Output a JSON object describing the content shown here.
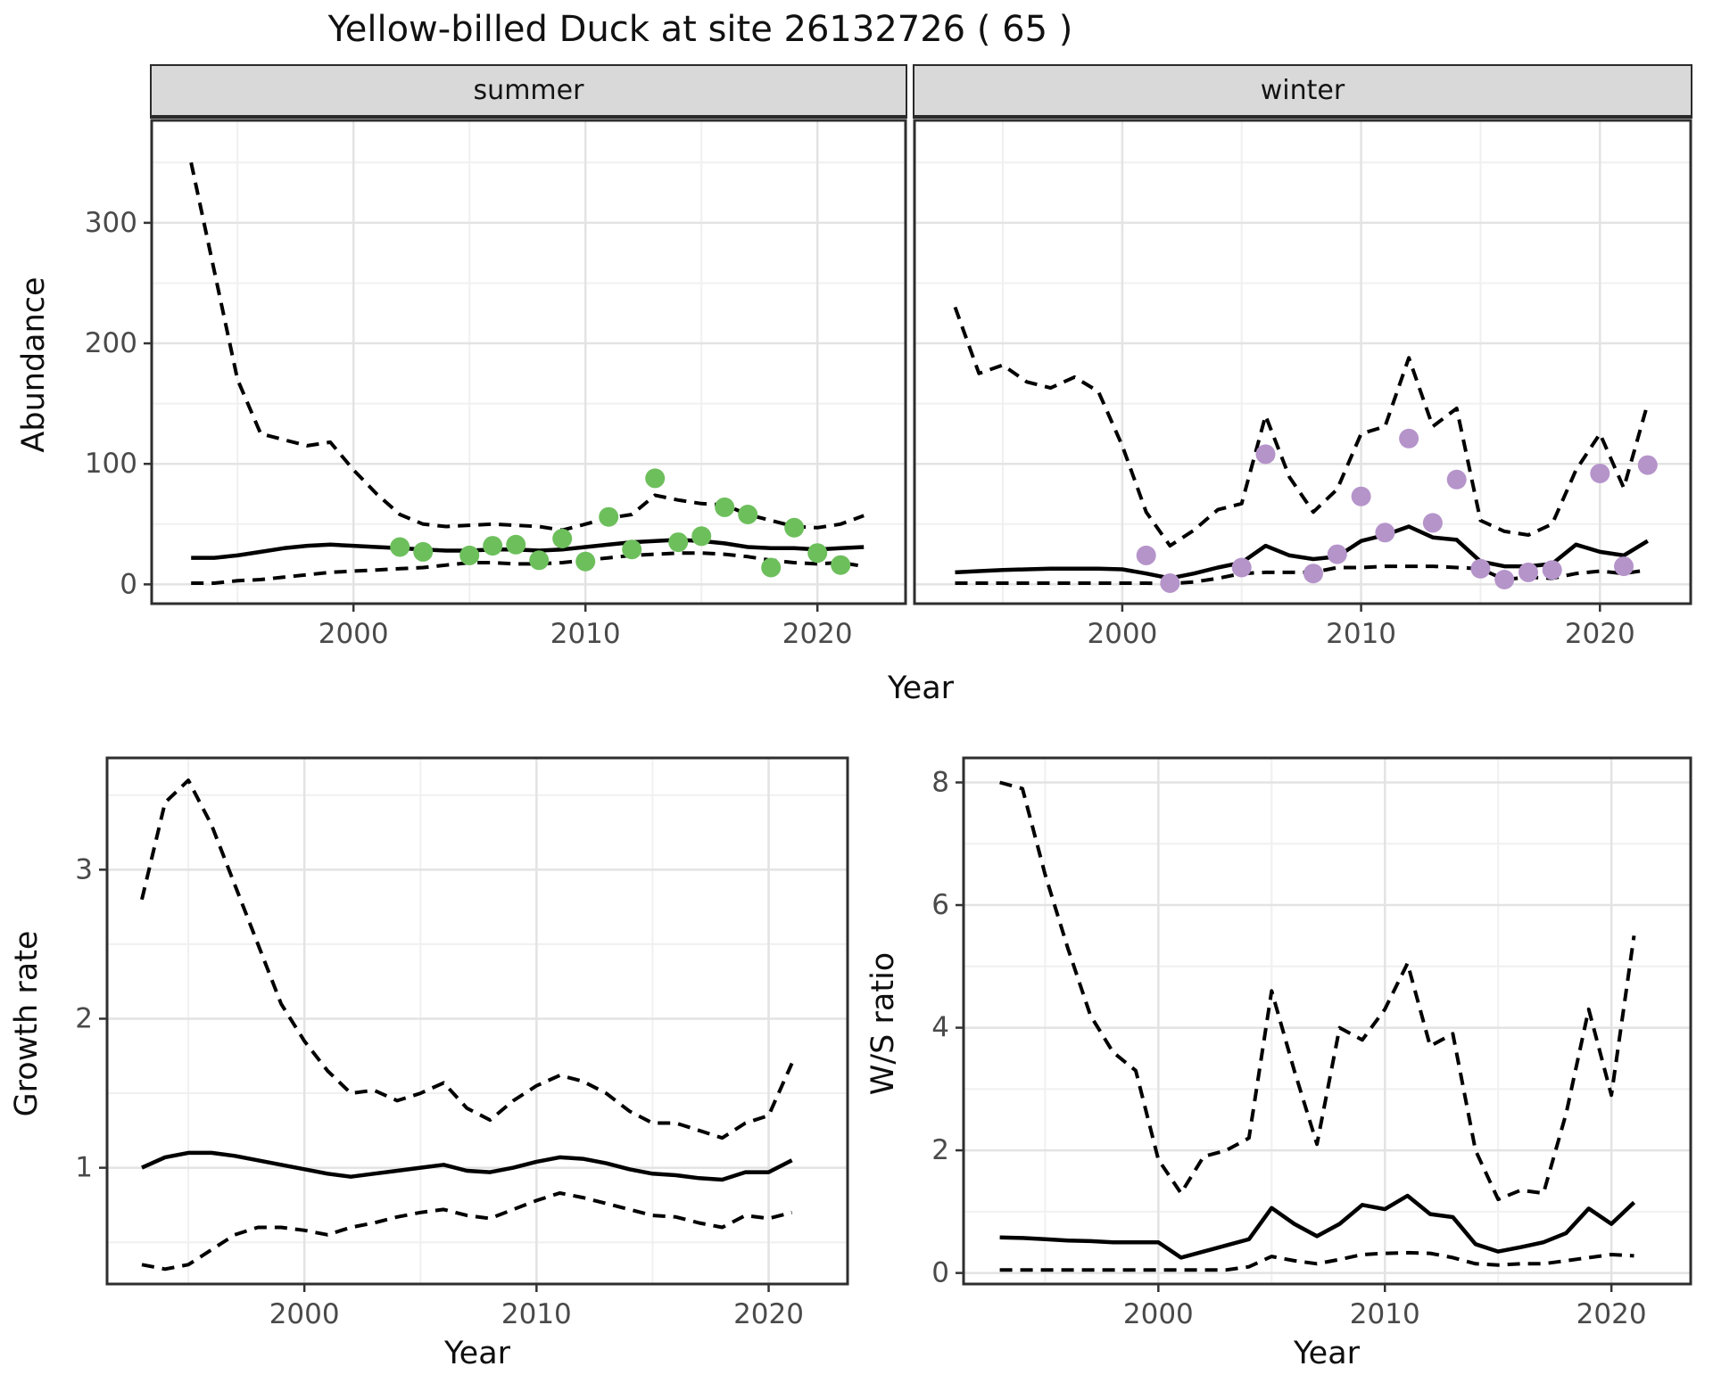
{
  "title": "Yellow-billed Duck at site 26132726 ( 65 )",
  "facets": {
    "summer": "summer",
    "winter": "winter"
  },
  "axes": {
    "abundance_label": "Abundance",
    "growth_label": "Growth rate",
    "ratio_label": "W/S ratio",
    "year_label": "Year"
  },
  "colors": {
    "summer_points": "#6dbf5c",
    "winter_points": "#b594ca",
    "line": "#000000",
    "strip_bg": "#d9d9d9",
    "grid_major": "#e3e3e3",
    "grid_minor": "#f0f0f0",
    "panel_border": "#2e2e2e",
    "tick_text": "#4a4a4a"
  },
  "chart_data": [
    {
      "id": "summer",
      "type": "line",
      "facet": "summer",
      "xlabel": "Year",
      "ylabel": "Abundance",
      "xlim": [
        1991.3,
        2023.8
      ],
      "ylim": [
        -16,
        385
      ],
      "x_ticks": [
        2000,
        2010,
        2020
      ],
      "x_minor": [
        1995,
        2005,
        2015
      ],
      "y_ticks": [
        0,
        100,
        200,
        300
      ],
      "y_minor": [
        50,
        150,
        250,
        350
      ],
      "x_start": 1993,
      "series": [
        {
          "name": "upper_ci",
          "style": "dashed",
          "values": [
            350,
            260,
            170,
            125,
            120,
            115,
            118,
            95,
            75,
            58,
            50,
            48,
            49,
            50,
            49,
            48,
            45,
            50,
            55,
            58,
            74,
            70,
            67,
            66,
            58,
            53,
            48,
            47,
            50,
            57
          ]
        },
        {
          "name": "median",
          "style": "solid",
          "values": [
            22,
            22,
            24,
            27,
            30,
            32,
            33,
            32,
            31,
            30,
            29,
            28,
            28,
            29,
            29,
            28,
            29,
            31,
            33,
            35,
            36,
            37,
            36,
            34,
            31,
            30,
            30,
            29,
            30,
            31
          ]
        },
        {
          "name": "lower_ci",
          "style": "dashed",
          "values": [
            1,
            1,
            3,
            4,
            6,
            8,
            10,
            11,
            12,
            13,
            14,
            16,
            18,
            18,
            17,
            17,
            18,
            20,
            22,
            24,
            25,
            26,
            26,
            25,
            23,
            20,
            18,
            17,
            18,
            15
          ]
        }
      ],
      "points": {
        "name": "observed_counts",
        "years": [
          2002,
          2003,
          2005,
          2006,
          2007,
          2008,
          2009,
          2010,
          2011,
          2012,
          2013,
          2014,
          2015,
          2016,
          2017,
          2018,
          2019,
          2020,
          2021
        ],
        "values": [
          31,
          27,
          24,
          32,
          33,
          20,
          38,
          19,
          56,
          29,
          88,
          35,
          40,
          64,
          58,
          14,
          47,
          26,
          16
        ]
      }
    },
    {
      "id": "winter",
      "type": "line",
      "facet": "winter",
      "xlabel": "Year",
      "ylabel": "Abundance",
      "xlim": [
        1991.3,
        2023.8
      ],
      "ylim": [
        -16,
        385
      ],
      "x_ticks": [
        2000,
        2010,
        2020
      ],
      "x_minor": [
        1995,
        2005,
        2015
      ],
      "y_ticks": [
        0,
        100,
        200,
        300
      ],
      "y_minor": [
        50,
        150,
        250,
        350
      ],
      "x_start": 1993,
      "series": [
        {
          "name": "upper_ci",
          "style": "dashed",
          "values": [
            230,
            175,
            182,
            168,
            163,
            172,
            160,
            115,
            60,
            32,
            45,
            62,
            67,
            140,
            89,
            60,
            79,
            125,
            131,
            188,
            131,
            146,
            53,
            44,
            41,
            50,
            95,
            125,
            80,
            150
          ]
        },
        {
          "name": "median",
          "style": "solid",
          "values": [
            10,
            11,
            12,
            12.5,
            13,
            13,
            13,
            12.5,
            9,
            5,
            9,
            14,
            18,
            32,
            24,
            21,
            23,
            36,
            41,
            48,
            39,
            37,
            19,
            15,
            15,
            17,
            33,
            27,
            24,
            36
          ]
        },
        {
          "name": "lower_ci",
          "style": "dashed",
          "values": [
            1,
            1,
            1,
            1,
            1,
            1,
            1,
            1,
            1,
            0.5,
            2,
            5,
            9,
            10,
            10,
            10,
            14,
            14,
            15,
            15,
            15,
            14,
            13,
            4,
            6,
            5,
            9,
            11,
            9,
            12
          ]
        }
      ],
      "points": {
        "name": "observed_counts",
        "years": [
          2001,
          2002,
          2005,
          2006,
          2008,
          2009,
          2010,
          2011,
          2012,
          2013,
          2014,
          2015,
          2016,
          2017,
          2018,
          2020,
          2021,
          2022
        ],
        "values": [
          24,
          1,
          14,
          108,
          9,
          25,
          73,
          43,
          121,
          51,
          87,
          13,
          4,
          10,
          12,
          92,
          15,
          99
        ]
      }
    },
    {
      "id": "growth",
      "type": "line",
      "facet": null,
      "xlabel": "Year",
      "ylabel": "Growth rate",
      "xlim": [
        1991.5,
        2023.4
      ],
      "ylim": [
        0.22,
        3.75
      ],
      "x_ticks": [
        2000,
        2010,
        2020
      ],
      "x_minor": [
        1995,
        2005,
        2015
      ],
      "y_ticks": [
        1,
        2,
        3
      ],
      "y_minor": [
        0.5,
        1.5,
        2.5,
        3.5
      ],
      "x_start": 1993,
      "series": [
        {
          "name": "upper_ci",
          "style": "dashed",
          "values": [
            2.8,
            3.45,
            3.6,
            3.3,
            2.9,
            2.5,
            2.1,
            1.85,
            1.65,
            1.5,
            1.52,
            1.45,
            1.5,
            1.57,
            1.4,
            1.32,
            1.45,
            1.55,
            1.62,
            1.58,
            1.5,
            1.38,
            1.3,
            1.3,
            1.25,
            1.2,
            1.3,
            1.35,
            1.7
          ]
        },
        {
          "name": "median",
          "style": "solid",
          "values": [
            1.0,
            1.07,
            1.1,
            1.1,
            1.08,
            1.05,
            1.02,
            0.99,
            0.96,
            0.94,
            0.96,
            0.98,
            1.0,
            1.02,
            0.98,
            0.97,
            1.0,
            1.04,
            1.07,
            1.06,
            1.03,
            0.99,
            0.96,
            0.95,
            0.93,
            0.92,
            0.97,
            0.97,
            1.05
          ]
        },
        {
          "name": "lower_ci",
          "style": "dashed",
          "values": [
            0.35,
            0.32,
            0.35,
            0.45,
            0.55,
            0.6,
            0.6,
            0.58,
            0.55,
            0.6,
            0.63,
            0.67,
            0.7,
            0.72,
            0.68,
            0.66,
            0.72,
            0.78,
            0.83,
            0.8,
            0.76,
            0.72,
            0.68,
            0.67,
            0.63,
            0.6,
            0.68,
            0.66,
            0.7
          ]
        }
      ],
      "points": null
    },
    {
      "id": "ratio",
      "type": "line",
      "facet": null,
      "xlabel": "Year",
      "ylabel": "W/S ratio",
      "xlim": [
        1991.4,
        2023.5
      ],
      "ylim": [
        -0.18,
        8.4
      ],
      "x_ticks": [
        2000,
        2010,
        2020
      ],
      "x_minor": [
        1995,
        2005,
        2015
      ],
      "y_ticks": [
        0,
        2,
        4,
        6,
        8
      ],
      "y_minor": [
        1,
        3,
        5,
        7
      ],
      "x_start": 1993,
      "series": [
        {
          "name": "upper_ci",
          "style": "dashed",
          "values": [
            8.0,
            7.9,
            6.5,
            5.3,
            4.2,
            3.6,
            3.3,
            1.85,
            1.3,
            1.9,
            2.0,
            2.2,
            4.6,
            3.3,
            2.1,
            4.0,
            3.8,
            4.3,
            5.05,
            3.7,
            3.9,
            2.0,
            1.2,
            1.35,
            1.3,
            2.6,
            4.3,
            2.9,
            5.5
          ]
        },
        {
          "name": "median",
          "style": "solid",
          "values": [
            0.58,
            0.57,
            0.55,
            0.53,
            0.52,
            0.5,
            0.5,
            0.5,
            0.25,
            0.35,
            0.45,
            0.55,
            1.06,
            0.8,
            0.6,
            0.8,
            1.11,
            1.04,
            1.26,
            0.96,
            0.91,
            0.47,
            0.35,
            0.42,
            0.5,
            0.65,
            1.05,
            0.8,
            1.15
          ]
        },
        {
          "name": "lower_ci",
          "style": "dashed",
          "values": [
            0.05,
            0.05,
            0.05,
            0.05,
            0.05,
            0.05,
            0.05,
            0.05,
            0.05,
            0.05,
            0.05,
            0.1,
            0.27,
            0.2,
            0.15,
            0.22,
            0.3,
            0.32,
            0.33,
            0.32,
            0.25,
            0.15,
            0.13,
            0.15,
            0.15,
            0.2,
            0.25,
            0.3,
            0.28
          ]
        }
      ],
      "points": null
    }
  ]
}
